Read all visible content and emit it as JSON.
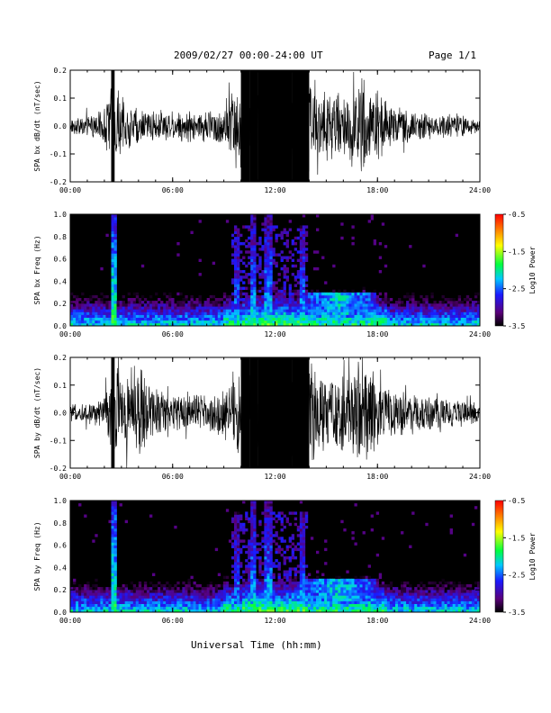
{
  "header": {
    "title": "2009/02/27  00:00-24:00 UT",
    "page": "Page 1/1"
  },
  "x_axis_title": "Universal Time (hh:mm)",
  "colorbar": {
    "label": "Log10 Power",
    "ticks": [
      "-0.5",
      "-1.5",
      "-2.5",
      "-3.5"
    ]
  },
  "chart_data": [
    {
      "type": "line",
      "ylabel": "SPA bx dB/dt (nT/sec)",
      "xlim": [
        0,
        24
      ],
      "ylim": [
        -0.2,
        0.2
      ],
      "xticks": [
        "00:00",
        "06:00",
        "12:00",
        "18:00",
        "24:00"
      ],
      "yticks": [
        "-0.2",
        "-0.1",
        "0.0",
        "0.1",
        "0.2"
      ],
      "envelope": {
        "x_hours": [
          0,
          1,
          2,
          2.4,
          2.6,
          3,
          4,
          5,
          6,
          7,
          8,
          9,
          10,
          10.5,
          11,
          12,
          13,
          14,
          15,
          16,
          17,
          18,
          19,
          20,
          21,
          22,
          23,
          24
        ],
        "amplitude": [
          0.03,
          0.04,
          0.07,
          0.2,
          0.2,
          0.1,
          0.07,
          0.06,
          0.06,
          0.06,
          0.06,
          0.09,
          0.2,
          0.2,
          0.2,
          0.2,
          0.2,
          0.2,
          0.15,
          0.12,
          0.2,
          0.13,
          0.08,
          0.06,
          0.05,
          0.05,
          0.04,
          0.03
        ]
      }
    },
    {
      "type": "heatmap",
      "ylabel": "SPA bx Freq (Hz)",
      "xlim": [
        0,
        24
      ],
      "ylim": [
        0,
        1.0
      ],
      "xticks": [
        "00:00",
        "06:00",
        "12:00",
        "18:00",
        "24:00"
      ],
      "yticks": [
        "0.0",
        "0.2",
        "0.4",
        "0.6",
        "0.8",
        "1.0"
      ],
      "zlim": [
        -3.5,
        -0.5
      ],
      "zlabel": "Log10 Power",
      "features": [
        {
          "x_hour": 2.5,
          "fmax_hz": 1.0,
          "z": -1.9
        },
        {
          "x_hour": 9.8,
          "fmax_hz": 0.9,
          "z": -2.4
        },
        {
          "x_hour": 10.7,
          "fmax_hz": 1.0,
          "z": -2.2
        },
        {
          "x_hour": 11.6,
          "fmax_hz": 1.0,
          "z": -2.2
        },
        {
          "x_hour": 13.6,
          "fmax_hz": 0.9,
          "z": -2.3
        },
        {
          "band_x": [
            13.5,
            18
          ],
          "f_hz": [
            0.1,
            0.3
          ],
          "z": -2.2
        }
      ]
    },
    {
      "type": "line",
      "ylabel": "SPA by dB/dt (nT/sec)",
      "xlim": [
        0,
        24
      ],
      "ylim": [
        -0.2,
        0.2
      ],
      "xticks": [
        "00:00",
        "06:00",
        "12:00",
        "18:00",
        "24:00"
      ],
      "yticks": [
        "-0.2",
        "-0.1",
        "0.0",
        "0.1",
        "0.2"
      ],
      "envelope": {
        "x_hours": [
          0,
          1,
          2,
          2.4,
          2.6,
          3,
          4,
          5,
          6,
          7,
          8,
          9,
          10,
          10.5,
          11,
          12,
          13,
          14,
          15,
          16,
          17,
          18,
          19,
          20,
          21,
          22,
          23,
          24
        ],
        "amplitude": [
          0.03,
          0.04,
          0.06,
          0.2,
          0.2,
          0.15,
          0.2,
          0.1,
          0.07,
          0.07,
          0.08,
          0.1,
          0.2,
          0.2,
          0.2,
          0.2,
          0.2,
          0.2,
          0.16,
          0.15,
          0.2,
          0.14,
          0.1,
          0.08,
          0.07,
          0.06,
          0.05,
          0.04
        ]
      }
    },
    {
      "type": "heatmap",
      "ylabel": "SPA by Freq (Hz)",
      "xlim": [
        0,
        24
      ],
      "ylim": [
        0,
        1.0
      ],
      "xticks": [
        "00:00",
        "06:00",
        "12:00",
        "18:00",
        "24:00"
      ],
      "yticks": [
        "0.0",
        "0.2",
        "0.4",
        "0.6",
        "0.8",
        "1.0"
      ],
      "zlim": [
        -3.5,
        -0.5
      ],
      "zlabel": "Log10 Power",
      "features": [
        {
          "x_hour": 2.5,
          "fmax_hz": 1.0,
          "z": -1.9
        },
        {
          "x_hour": 9.8,
          "fmax_hz": 0.9,
          "z": -2.4
        },
        {
          "x_hour": 10.7,
          "fmax_hz": 1.0,
          "z": -2.2
        },
        {
          "x_hour": 11.6,
          "fmax_hz": 1.0,
          "z": -2.2
        },
        {
          "x_hour": 13.6,
          "fmax_hz": 0.9,
          "z": -2.3
        },
        {
          "band_x": [
            13.5,
            18
          ],
          "f_hz": [
            0.1,
            0.3
          ],
          "z": -2.2
        }
      ]
    }
  ]
}
